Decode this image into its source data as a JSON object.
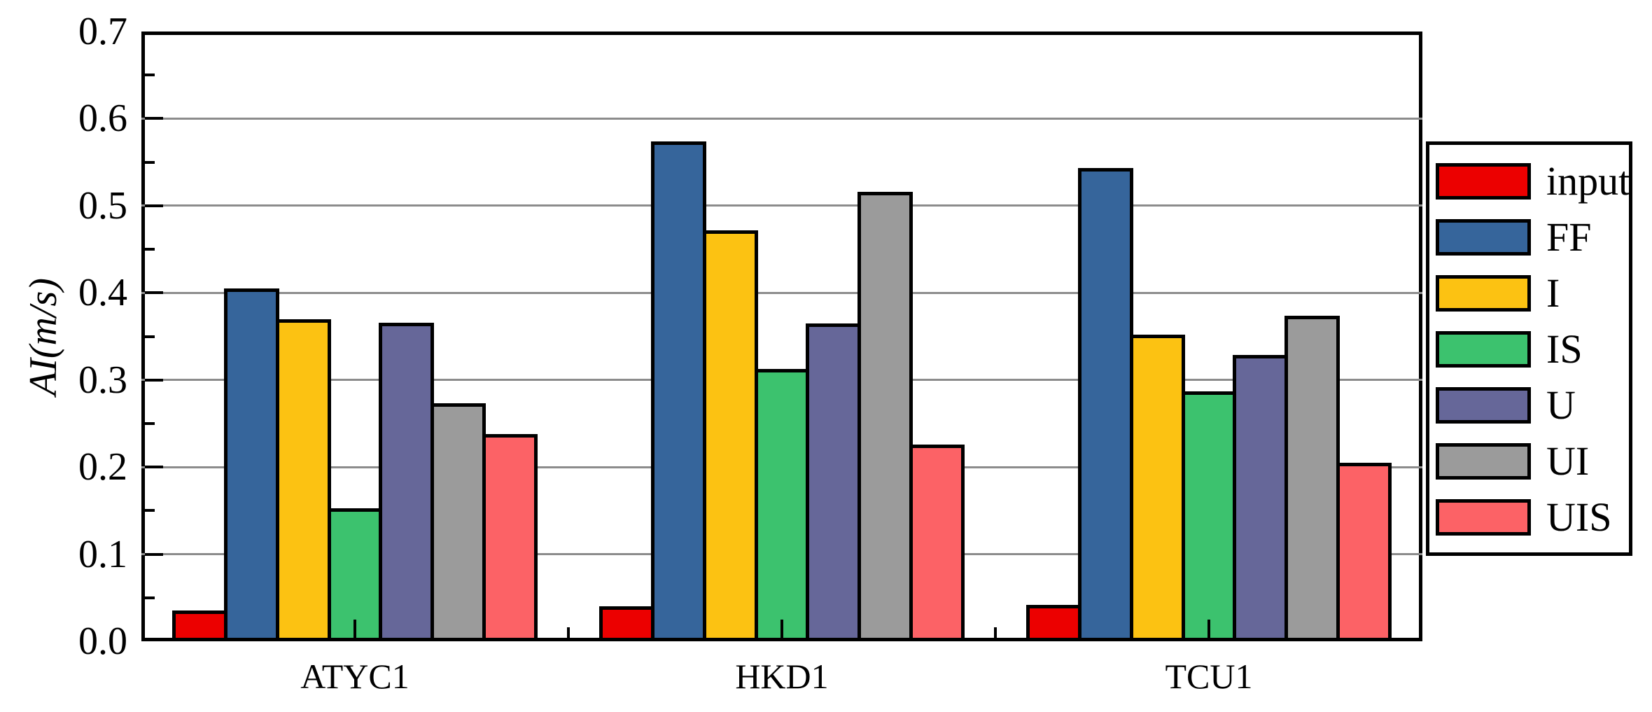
{
  "figure": {
    "background": "#ffffff",
    "frame_color": "#000000"
  },
  "chart_data": {
    "type": "bar",
    "title": "",
    "xlabel": "",
    "ylabel": "AI(m/s)",
    "categories": [
      "ATYC1",
      "HKD1",
      "TCU1"
    ],
    "series": [
      {
        "name": "input",
        "color": "#EC0000",
        "values": [
          0.035,
          0.04,
          0.042
        ]
      },
      {
        "name": "FF",
        "color": "#36659B",
        "values": [
          0.405,
          0.574,
          0.543
        ]
      },
      {
        "name": "I",
        "color": "#FCC212",
        "values": [
          0.37,
          0.472,
          0.352
        ]
      },
      {
        "name": "IS",
        "color": "#3CC26E",
        "values": [
          0.153,
          0.313,
          0.287
        ]
      },
      {
        "name": "U",
        "color": "#666799",
        "values": [
          0.366,
          0.365,
          0.329
        ]
      },
      {
        "name": "UI",
        "color": "#9B9B9B",
        "values": [
          0.273,
          0.516,
          0.374
        ]
      },
      {
        "name": "UIS",
        "color": "#FC6266",
        "values": [
          0.238,
          0.226,
          0.205
        ]
      }
    ],
    "ylim": [
      0.0,
      0.7
    ],
    "y_major_step": 0.1,
    "y_minor_step": 0.05,
    "y_tick_labels": [
      "0.0",
      "0.1",
      "0.2",
      "0.3",
      "0.4",
      "0.5",
      "0.6",
      "0.7"
    ],
    "grid": "horizontal-major",
    "grid_color": "#8C8C8C",
    "bar_border_color": "#000000",
    "legend": {
      "position": "right-overlapping-frame",
      "entries": [
        "input",
        "FF",
        "I",
        "IS",
        "U",
        "UI",
        "UIS"
      ]
    }
  }
}
